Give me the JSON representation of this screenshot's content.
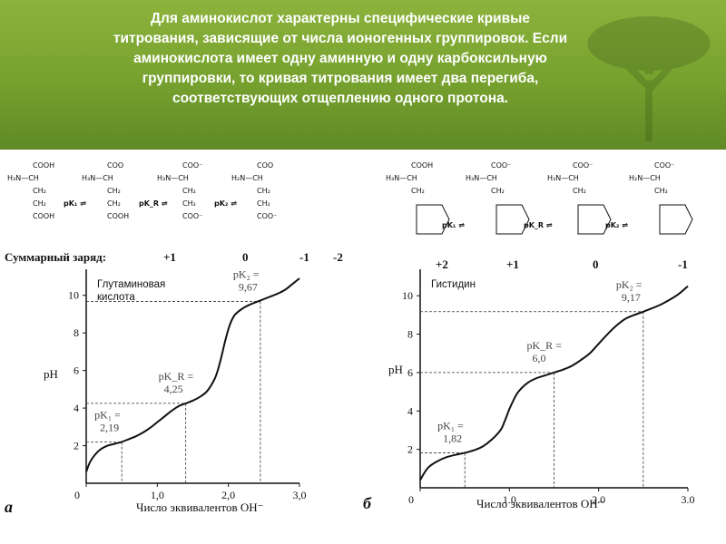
{
  "banner": {
    "lines": [
      "Для аминокислот характерны специфические кривые",
      "титрования, зависящие от числа ионогенных группировок. Если",
      "аминокислота имеет одну аминную и одну карбоксильную",
      "группировки, то кривая титрования имеет два перегиба,",
      "соответствующих отщеплению одного протона."
    ]
  },
  "charge_label": "Суммарный заряд:",
  "charges_left": [
    "+1",
    "0",
    "-1",
    "-2"
  ],
  "charges_right": [
    "+2",
    "+1",
    "0",
    "-1"
  ],
  "formulas_left": {
    "tops": [
      "COOH",
      "COO",
      "COO⁻",
      "COO"
    ],
    "amines": [
      "H₃N—CH",
      "H₃N—CH",
      "H₃N—CH",
      "H₂N—CH"
    ],
    "ch2a": [
      "CH₂",
      "CH₂",
      "CH₂",
      "CH₂"
    ],
    "ch2b": [
      "CH₂",
      "CH₂",
      "CH₂",
      "CH₂"
    ],
    "bottoms": [
      "COOH",
      "COOH",
      "COO⁻",
      "COO⁻"
    ],
    "arrows": [
      "pK₁",
      "pK_R",
      "pK₂"
    ]
  },
  "formulas_right": {
    "tops": [
      "COOH",
      "COO⁻",
      "COO⁻",
      "COO⁻"
    ],
    "amines": [
      "H₃N—CH",
      "H₃N—CH",
      "H₃N—CH",
      "H₂N—CH"
    ],
    "ch2": [
      "CH₂",
      "CH₂",
      "CH₂",
      "CH₂"
    ],
    "arrows": [
      "pK₁",
      "pK_R",
      "pK₂"
    ]
  },
  "charts": [
    {
      "panel": "а",
      "title_lines": [
        "Глутаминовая",
        "кислота"
      ],
      "ylabel": "pH",
      "xlabel": "Число эквивалентов OH⁻",
      "pk_labels": [
        {
          "name": "pK₁ =",
          "value": "2,19"
        },
        {
          "name": "pK_R =",
          "value": "4,25"
        },
        {
          "name": "pK₂ =",
          "value": "9,67"
        }
      ]
    },
    {
      "panel": "б",
      "title_lines": [
        "Гистидин"
      ],
      "ylabel": "pH",
      "xlabel": "Число эквивалентов OH⁻",
      "pk_labels": [
        {
          "name": "pK₁ =",
          "value": "1,82"
        },
        {
          "name": "pK_R =",
          "value": "6,0"
        },
        {
          "name": "pK₂ =",
          "value": "9,17"
        }
      ]
    }
  ],
  "chart_data": [
    {
      "type": "line",
      "title": "Глутаминовая кислота",
      "xlabel": "Число эквивалентов OH⁻",
      "ylabel": "pH",
      "xlim": [
        0,
        3.0
      ],
      "ylim": [
        0,
        11
      ],
      "x_ticks": [
        "0",
        "1,0",
        "2,0",
        "3,0"
      ],
      "y_ticks": [
        "2",
        "4",
        "6",
        "8",
        "10"
      ],
      "series": [
        {
          "x": [
            0,
            0.05,
            0.12,
            0.2,
            0.3,
            0.4,
            0.5,
            0.6,
            0.7,
            0.8,
            0.9,
            1.0,
            1.1,
            1.2,
            1.3,
            1.4,
            1.5,
            1.6,
            1.7,
            1.8,
            1.85,
            1.9,
            1.95,
            2.0,
            2.05,
            2.1,
            2.2,
            2.3,
            2.4,
            2.5,
            2.6,
            2.7,
            2.8,
            2.9,
            3.0
          ],
          "y": [
            0.6,
            1.1,
            1.5,
            1.8,
            2.0,
            2.1,
            2.2,
            2.35,
            2.5,
            2.7,
            2.95,
            3.25,
            3.55,
            3.85,
            4.1,
            4.25,
            4.4,
            4.6,
            4.9,
            5.5,
            6.0,
            6.7,
            7.5,
            8.2,
            8.7,
            9.0,
            9.3,
            9.5,
            9.65,
            9.8,
            9.95,
            10.1,
            10.3,
            10.6,
            10.9
          ]
        }
      ],
      "annotations": [
        {
          "label": "pK₁ = 2,19",
          "x": 0.5,
          "y": 2.19
        },
        {
          "label": "pK_R = 4,25",
          "x": 1.4,
          "y": 4.25
        },
        {
          "label": "pK₂ = 9,67",
          "x": 2.45,
          "y": 9.67
        }
      ]
    },
    {
      "type": "line",
      "title": "Гистидин",
      "xlabel": "Число эквивалентов OH⁻",
      "ylabel": "pH",
      "xlim": [
        0,
        3.0
      ],
      "ylim": [
        0,
        11
      ],
      "x_ticks": [
        "0",
        "1,0",
        "2,0",
        "3,0"
      ],
      "y_ticks": [
        "2",
        "4",
        "6",
        "8",
        "10"
      ],
      "series": [
        {
          "x": [
            0,
            0.05,
            0.1,
            0.2,
            0.3,
            0.4,
            0.5,
            0.6,
            0.7,
            0.8,
            0.9,
            0.95,
            1.0,
            1.05,
            1.1,
            1.2,
            1.3,
            1.4,
            1.5,
            1.6,
            1.7,
            1.8,
            1.9,
            2.0,
            2.1,
            2.2,
            2.3,
            2.4,
            2.5,
            2.6,
            2.7,
            2.8,
            2.9,
            3.0
          ],
          "y": [
            0.4,
            0.8,
            1.1,
            1.4,
            1.6,
            1.72,
            1.82,
            1.95,
            2.15,
            2.5,
            3.0,
            3.5,
            4.1,
            4.6,
            5.0,
            5.45,
            5.7,
            5.85,
            6.0,
            6.15,
            6.35,
            6.65,
            7.0,
            7.5,
            8.0,
            8.45,
            8.8,
            9.0,
            9.17,
            9.35,
            9.55,
            9.8,
            10.1,
            10.5
          ]
        }
      ],
      "annotations": [
        {
          "label": "pK₁ = 1,82",
          "x": 0.5,
          "y": 1.82
        },
        {
          "label": "pK_R = 6,0",
          "x": 1.5,
          "y": 6.0
        },
        {
          "label": "pK₂ = 9,17",
          "x": 2.5,
          "y": 9.17
        }
      ]
    }
  ]
}
